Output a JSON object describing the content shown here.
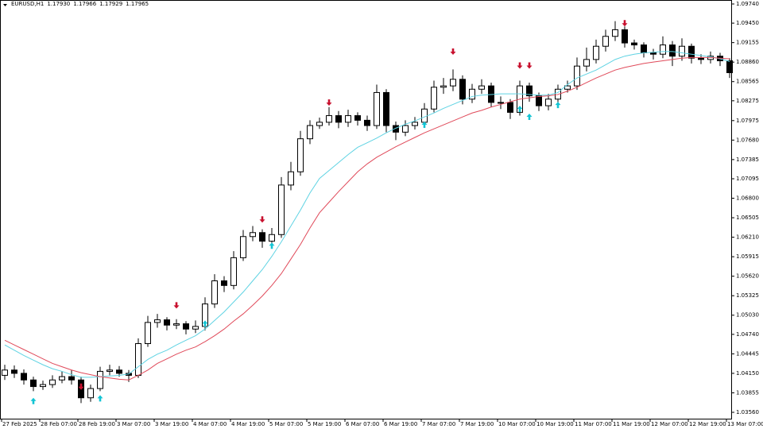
{
  "chart_data": {
    "type": "candlestick",
    "symbol": "EURUSD,H1",
    "quote": [
      "1.17930",
      "1.17966",
      "1.17929",
      "1.17965"
    ],
    "categories": [
      "27 Feb 2025",
      null,
      null,
      null,
      "28 Feb 07:00",
      null,
      null,
      null,
      "28 Feb 19:00",
      null,
      null,
      null,
      "3 Mar 07:00",
      null,
      null,
      null,
      "3 Mar 19:00",
      null,
      null,
      null,
      "4 Mar 07:00",
      null,
      null,
      null,
      "4 Mar 19:00",
      null,
      null,
      null,
      "5 Mar 07:00",
      null,
      null,
      null,
      "5 Mar 19:00",
      null,
      null,
      null,
      "6 Mar 07:00",
      null,
      null,
      null,
      "6 Mar 19:00",
      null,
      null,
      null,
      "7 Mar 07:00",
      null,
      null,
      null,
      "7 Mar 19:00",
      null,
      null,
      null,
      "10 Mar 07:00",
      null,
      null,
      null,
      "10 Mar 19:00",
      null,
      null,
      null,
      "11 Mar 07:00",
      null,
      null,
      null,
      "11 Mar 19:00",
      null,
      null,
      null,
      "12 Mar 07:00",
      null,
      null,
      null,
      "12 Mar 19:00",
      null,
      null,
      null,
      "13 Mar 07:00"
    ],
    "open": [
      1.0412,
      1.042,
      1.0415,
      1.0405,
      1.0395,
      1.0398,
      1.0405,
      1.041,
      1.0405,
      1.0378,
      1.0392,
      1.0418,
      1.042,
      1.0415,
      1.0412,
      1.046,
      1.0492,
      1.0496,
      1.0488,
      1.049,
      1.0482,
      1.0486,
      1.052,
      1.0555,
      1.0548,
      1.059,
      1.0622,
      1.0628,
      1.0615,
      1.0625,
      1.07,
      1.072,
      1.077,
      1.079,
      1.0795,
      1.0805,
      1.0795,
      1.0805,
      1.0798,
      1.079,
      1.084,
      1.079,
      1.078,
      1.079,
      1.0795,
      1.0815,
      1.0848,
      1.085,
      1.086,
      1.083,
      1.0845,
      1.085,
      1.0825,
      1.0825,
      1.081,
      1.085,
      1.0835,
      1.082,
      1.083,
      1.0845,
      1.085,
      1.088,
      1.089,
      1.091,
      1.0925,
      1.0935,
      1.0915,
      1.0912,
      1.09,
      1.0898,
      1.0912,
      1.0895,
      1.091,
      1.0892,
      1.089,
      1.0895,
      1.0888
    ],
    "high": [
      1.0428,
      1.0427,
      1.0421,
      1.041,
      1.0404,
      1.0412,
      1.0418,
      1.042,
      1.041,
      1.0398,
      1.0425,
      1.0428,
      1.0426,
      1.042,
      1.0468,
      1.0502,
      1.0505,
      1.05,
      1.0497,
      1.0494,
      1.0495,
      1.053,
      1.0565,
      1.0562,
      1.06,
      1.0632,
      1.0638,
      1.0633,
      1.0635,
      1.0712,
      1.0735,
      1.0782,
      1.0798,
      1.0802,
      1.0818,
      1.0812,
      1.0814,
      1.081,
      1.0805,
      1.0852,
      1.0845,
      1.0796,
      1.0798,
      1.0803,
      1.0824,
      1.0858,
      1.0862,
      1.0875,
      1.0866,
      1.0853,
      1.086,
      1.0855,
      1.0834,
      1.083,
      1.0858,
      1.0855,
      1.084,
      1.0838,
      1.0852,
      1.0858,
      1.0893,
      1.0908,
      1.092,
      1.0935,
      1.0948,
      1.094,
      1.092,
      1.0916,
      1.0906,
      1.0925,
      1.0918,
      1.0922,
      1.0914,
      1.0898,
      1.0902,
      1.09,
      1.0892
    ],
    "low": [
      1.0405,
      1.0408,
      1.0398,
      1.0388,
      1.039,
      1.0393,
      1.04,
      1.0398,
      1.037,
      1.0372,
      1.0388,
      1.0412,
      1.041,
      1.0402,
      1.0408,
      1.0455,
      1.0484,
      1.048,
      1.0482,
      1.0474,
      1.0476,
      1.048,
      1.0514,
      1.0538,
      1.0542,
      1.0585,
      1.0615,
      1.0605,
      1.061,
      1.062,
      1.0692,
      1.0714,
      1.0762,
      1.0785,
      1.079,
      1.0786,
      1.0788,
      1.079,
      1.0782,
      1.0785,
      1.078,
      1.0768,
      1.0774,
      1.0784,
      1.079,
      1.081,
      1.0838,
      1.0842,
      1.0822,
      1.0824,
      1.0838,
      1.0818,
      1.0815,
      1.08,
      1.0805,
      1.0826,
      1.0812,
      1.0813,
      1.0824,
      1.084,
      1.0844,
      1.0872,
      1.0884,
      1.0902,
      1.0918,
      1.0908,
      1.0905,
      1.0893,
      1.089,
      1.0892,
      1.088,
      1.0888,
      1.0884,
      1.0883,
      1.0884,
      1.088,
      1.0862
    ],
    "close": [
      1.042,
      1.0415,
      1.0405,
      1.0395,
      1.0398,
      1.0405,
      1.041,
      1.0405,
      1.0378,
      1.0392,
      1.0418,
      1.042,
      1.0415,
      1.0412,
      1.046,
      1.0492,
      1.0496,
      1.0488,
      1.049,
      1.0482,
      1.0486,
      1.052,
      1.0555,
      1.0548,
      1.059,
      1.0622,
      1.0628,
      1.0615,
      1.0625,
      1.07,
      1.072,
      1.077,
      1.079,
      1.0795,
      1.0805,
      1.0795,
      1.0805,
      1.0798,
      1.079,
      1.084,
      1.079,
      1.078,
      1.079,
      1.0795,
      1.0815,
      1.0848,
      1.085,
      1.086,
      1.083,
      1.0845,
      1.085,
      1.0825,
      1.0825,
      1.081,
      1.085,
      1.0835,
      1.082,
      1.083,
      1.0845,
      1.085,
      1.088,
      1.089,
      1.091,
      1.0925,
      1.0935,
      1.0915,
      1.0912,
      1.09,
      1.0898,
      1.0912,
      1.0895,
      1.091,
      1.0892,
      1.089,
      1.0895,
      1.0888,
      1.087
    ],
    "series": [
      {
        "color": "#5fd3e3",
        "values": [
          1.0458,
          1.045,
          1.0442,
          1.0435,
          1.0428,
          1.0422,
          1.0418,
          1.0413,
          1.0409,
          1.0409,
          1.041,
          1.0411,
          1.0412,
          1.0414,
          1.0425,
          1.0436,
          1.0444,
          1.045,
          1.0458,
          1.0465,
          1.0472,
          1.0482,
          1.0495,
          1.0508,
          1.0523,
          1.0538,
          1.0555,
          1.0572,
          1.0592,
          1.0614,
          1.0638,
          1.0662,
          1.0688,
          1.071,
          1.0722,
          1.0734,
          1.0746,
          1.0757,
          1.0764,
          1.0771,
          1.0779,
          1.0786,
          1.0792,
          1.0797,
          1.0803,
          1.0809,
          1.0816,
          1.0822,
          1.0828,
          1.0834,
          1.0836,
          1.0837,
          1.0838,
          1.0838,
          1.0838,
          1.0837,
          1.0836,
          1.0836,
          1.084,
          1.0852,
          1.0862,
          1.0868,
          1.0874,
          1.0882,
          1.089,
          1.0895,
          1.0898,
          1.09,
          1.0901,
          1.0902,
          1.0902,
          1.09,
          1.0898,
          1.0896,
          1.0894,
          1.0891,
          1.0887
        ]
      },
      {
        "color": "#e04a5a",
        "values": [
          1.0465,
          1.0458,
          1.0451,
          1.0444,
          1.0437,
          1.043,
          1.0425,
          1.042,
          1.0416,
          1.0413,
          1.041,
          1.0408,
          1.0406,
          1.0405,
          1.0412,
          1.042,
          1.043,
          1.0437,
          1.0444,
          1.045,
          1.0455,
          1.0463,
          1.0472,
          1.0482,
          1.0494,
          1.0505,
          1.0518,
          1.0532,
          1.0548,
          1.0566,
          1.0588,
          1.061,
          1.0635,
          1.0658,
          1.0674,
          1.069,
          1.0705,
          1.072,
          1.0732,
          1.0742,
          1.075,
          1.0758,
          1.0765,
          1.0772,
          1.0779,
          1.0785,
          1.0791,
          1.0797,
          1.0803,
          1.0809,
          1.0813,
          1.0818,
          1.0822,
          1.0826,
          1.083,
          1.0832,
          1.0834,
          1.0835,
          1.0837,
          1.0842,
          1.0848,
          1.0855,
          1.0862,
          1.0868,
          1.0874,
          1.0878,
          1.0881,
          1.0884,
          1.0886,
          1.0888,
          1.089,
          1.0892,
          1.0893,
          1.0893,
          1.0893,
          1.0892,
          1.0891
        ]
      }
    ],
    "up_arrows": {
      "color": "#12c4d4",
      "values": [
        null,
        null,
        null,
        1.0378,
        null,
        null,
        null,
        null,
        null,
        null,
        1.0382,
        null,
        null,
        null,
        null,
        null,
        null,
        null,
        null,
        null,
        null,
        1.0495,
        null,
        null,
        null,
        null,
        null,
        null,
        1.0613,
        null,
        null,
        null,
        null,
        null,
        null,
        null,
        null,
        null,
        null,
        null,
        null,
        null,
        null,
        null,
        1.0796,
        null,
        null,
        null,
        null,
        null,
        null,
        null,
        null,
        null,
        1.082,
        1.0808,
        null,
        null,
        1.0826,
        null,
        null,
        null,
        null,
        null,
        null,
        null,
        null,
        null,
        null,
        null,
        null,
        null,
        null,
        null,
        null,
        null,
        null
      ]
    },
    "down_arrows": {
      "color": "#c8102e",
      "values": [
        null,
        null,
        null,
        null,
        null,
        null,
        null,
        null,
        1.039,
        null,
        null,
        null,
        null,
        null,
        null,
        null,
        null,
        null,
        1.0513,
        null,
        null,
        null,
        null,
        null,
        null,
        null,
        null,
        1.0643,
        null,
        null,
        null,
        null,
        null,
        null,
        1.082,
        null,
        null,
        null,
        null,
        null,
        null,
        null,
        null,
        null,
        null,
        null,
        null,
        1.0897,
        null,
        null,
        null,
        null,
        null,
        null,
        1.0876,
        1.0876,
        null,
        null,
        null,
        null,
        null,
        null,
        null,
        null,
        null,
        1.094,
        null,
        null,
        null,
        null,
        null,
        null,
        null,
        null,
        null,
        null,
        null
      ]
    },
    "ylim": [
      1.03464,
      1.098
    ],
    "yticks": [
      {
        "value": 1.0974,
        "label": "1.09740"
      },
      {
        "value": 1.0945,
        "label": "1.09450"
      },
      1.09155,
      {
        "value": 1.0886,
        "label": "1.08860"
      },
      1.08565,
      1.08275,
      1.07975,
      {
        "value": 1.0768,
        "label": "1.07680"
      },
      1.07385,
      1.07095,
      {
        "value": 1.068,
        "label": "1.06800"
      },
      1.06505,
      {
        "value": 1.0621,
        "label": "1.06210"
      },
      1.05915,
      {
        "value": 1.0562,
        "label": "1.05620"
      },
      1.05325,
      {
        "value": 1.0503,
        "label": "1.05030"
      },
      {
        "value": 1.0474,
        "label": "1.04740"
      },
      1.04445,
      {
        "value": 1.0415,
        "label": "1.04150"
      },
      1.03855,
      {
        "value": 1.0356,
        "label": "1.03560"
      }
    ]
  }
}
